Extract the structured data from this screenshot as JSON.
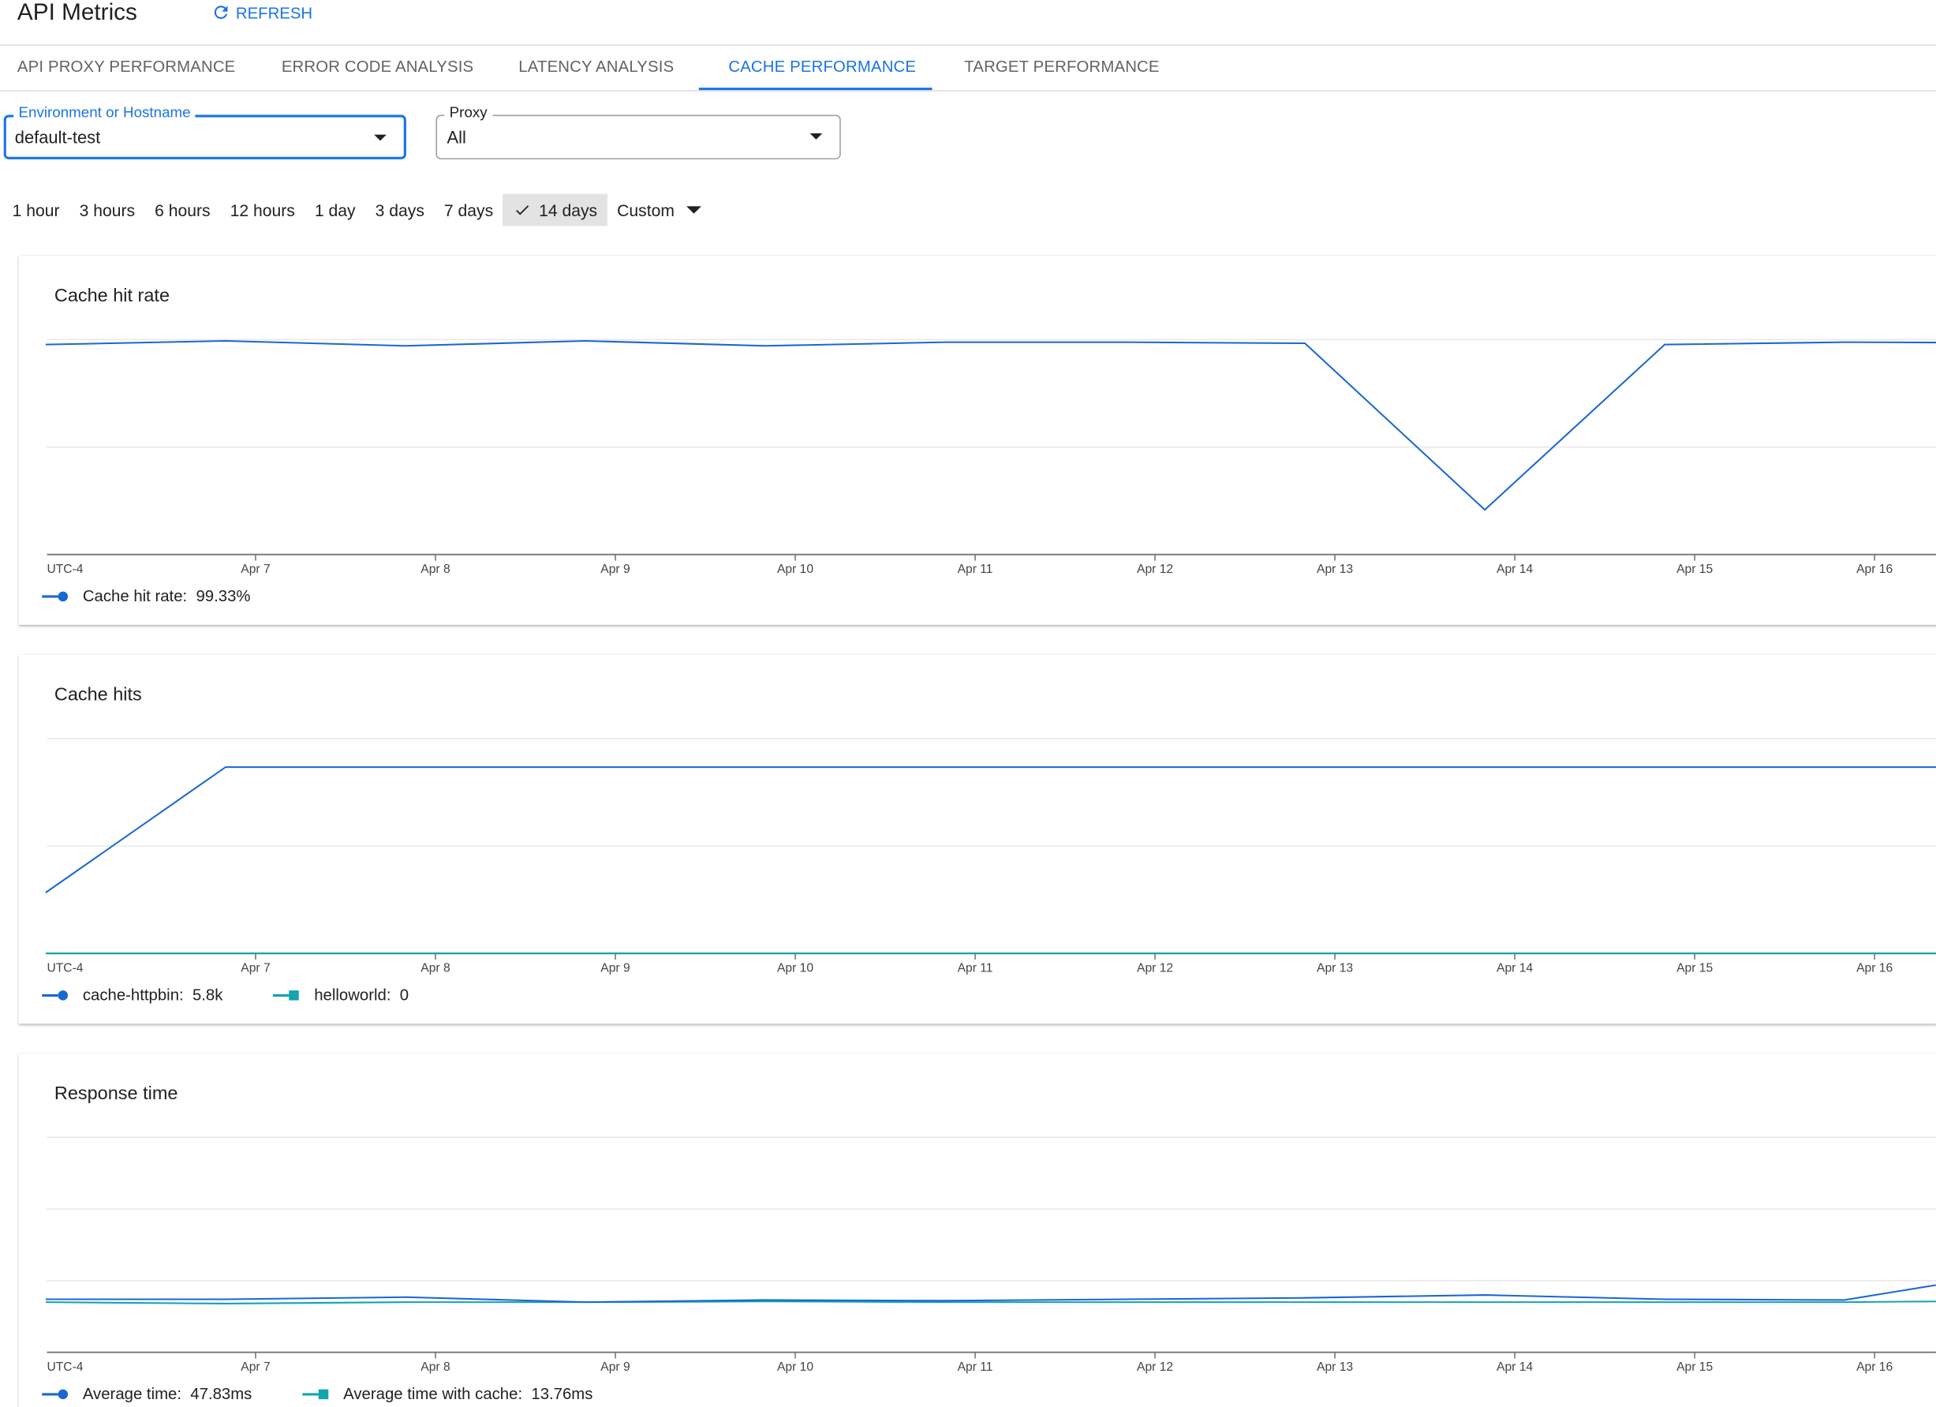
{
  "header": {
    "title": "API Metrics",
    "refresh_label": "REFRESH"
  },
  "tabs": [
    {
      "label": "API PROXY PERFORMANCE",
      "active": false
    },
    {
      "label": "ERROR CODE ANALYSIS",
      "active": false
    },
    {
      "label": "LATENCY ANALYSIS",
      "active": false
    },
    {
      "label": "CACHE PERFORMANCE",
      "active": true
    },
    {
      "label": "TARGET PERFORMANCE",
      "active": false
    }
  ],
  "filters": {
    "environment": {
      "label": "Environment or Hostname",
      "value": "default-test"
    },
    "proxy": {
      "label": "Proxy",
      "value": "All"
    }
  },
  "time_ranges": [
    "1 hour",
    "3 hours",
    "6 hours",
    "12 hours",
    "1 day",
    "3 days",
    "7 days",
    "14 days",
    "Custom"
  ],
  "selected_range": "14 days",
  "colors": {
    "accent": "#1a73e8",
    "series_blue": "#1967d2",
    "series_teal": "#12a4af"
  },
  "chart_data": [
    {
      "type": "line",
      "title": "Cache hit rate",
      "timezone_label": "UTC-4",
      "x_ticks": [
        "Apr 7",
        "Apr 8",
        "Apr 9",
        "Apr 10",
        "Apr 11",
        "Apr 12",
        "Apr 13",
        "Apr 14",
        "Apr 15",
        "Apr 16"
      ],
      "x": [
        "Apr 5 20:00",
        "Apr 6 20:00",
        "Apr 7 20:00",
        "Apr 8 20:00",
        "Apr 9 20:00",
        "Apr 10 20:00",
        "Apr 11 20:00",
        "Apr 12 20:00",
        "Apr 13 20:00",
        "Apr 14 20:00",
        "Apr 15 20:00",
        "Apr 16 20:00"
      ],
      "ylim": [
        0,
        100
      ],
      "grid": true,
      "y_tick_labels_shown": false,
      "series": [
        {
          "name": "Cache hit rate",
          "summary": "99.33%",
          "color": "#1967d2",
          "marker": "circle",
          "values": [
            97.7,
            99.4,
            97.1,
            99.4,
            97.1,
            98.8,
            98.8,
            98.3,
            20.8,
            97.7,
            98.8,
            98.5
          ]
        }
      ]
    },
    {
      "type": "line",
      "title": "Cache hits",
      "timezone_label": "UTC-4",
      "x_ticks": [
        "Apr 7",
        "Apr 8",
        "Apr 9",
        "Apr 10",
        "Apr 11",
        "Apr 12",
        "Apr 13",
        "Apr 14",
        "Apr 15",
        "Apr 16"
      ],
      "x": [
        "Apr 5 20:00",
        "Apr 6 20:00",
        "Apr 7 20:00",
        "Apr 8 20:00",
        "Apr 9 20:00",
        "Apr 10 20:00",
        "Apr 11 20:00",
        "Apr 12 20:00",
        "Apr 13 20:00",
        "Apr 14 20:00",
        "Apr 15 20:00",
        "Apr 16 20:00"
      ],
      "ylim": [
        0,
        100
      ],
      "grid": true,
      "y_tick_labels_shown": false,
      "series": [
        {
          "name": "cache-httpbin",
          "summary": "5.8k",
          "color": "#1967d2",
          "marker": "circle",
          "values": [
            28.3,
            86.7,
            86.7,
            86.7,
            86.7,
            86.7,
            86.7,
            86.7,
            86.7,
            86.7,
            86.7,
            86.7
          ]
        },
        {
          "name": "helloworld",
          "summary": "0",
          "color": "#12a4af",
          "marker": "square",
          "values": [
            0,
            0,
            0,
            0,
            0,
            0,
            0,
            0,
            0,
            0,
            0,
            0
          ]
        }
      ]
    },
    {
      "type": "line",
      "title": "Response time",
      "timezone_label": "UTC-4",
      "x_ticks": [
        "Apr 7",
        "Apr 8",
        "Apr 9",
        "Apr 10",
        "Apr 11",
        "Apr 12",
        "Apr 13",
        "Apr 14",
        "Apr 15",
        "Apr 16"
      ],
      "x": [
        "Apr 5 20:00",
        "Apr 6 20:00",
        "Apr 7 20:00",
        "Apr 8 20:00",
        "Apr 9 20:00",
        "Apr 10 20:00",
        "Apr 11 20:00",
        "Apr 12 20:00",
        "Apr 13 20:00",
        "Apr 14 20:00",
        "Apr 15 20:00",
        "Apr 16 20:00"
      ],
      "ylim": [
        0,
        150
      ],
      "grid": true,
      "y_tick_labels_shown": false,
      "series": [
        {
          "name": "Average time",
          "summary": "47.83ms",
          "color": "#1967d2",
          "marker": "circle",
          "values": [
            37,
            37,
            38.5,
            35,
            36.5,
            36,
            37,
            38,
            40,
            37,
            36.5,
            57
          ]
        },
        {
          "name": "Average time with cache",
          "summary": "13.76ms",
          "color": "#12a4af",
          "marker": "square",
          "values": [
            35,
            34,
            35,
            35,
            35.5,
            35,
            35,
            35,
            35,
            35,
            35,
            36
          ]
        }
      ]
    }
  ]
}
